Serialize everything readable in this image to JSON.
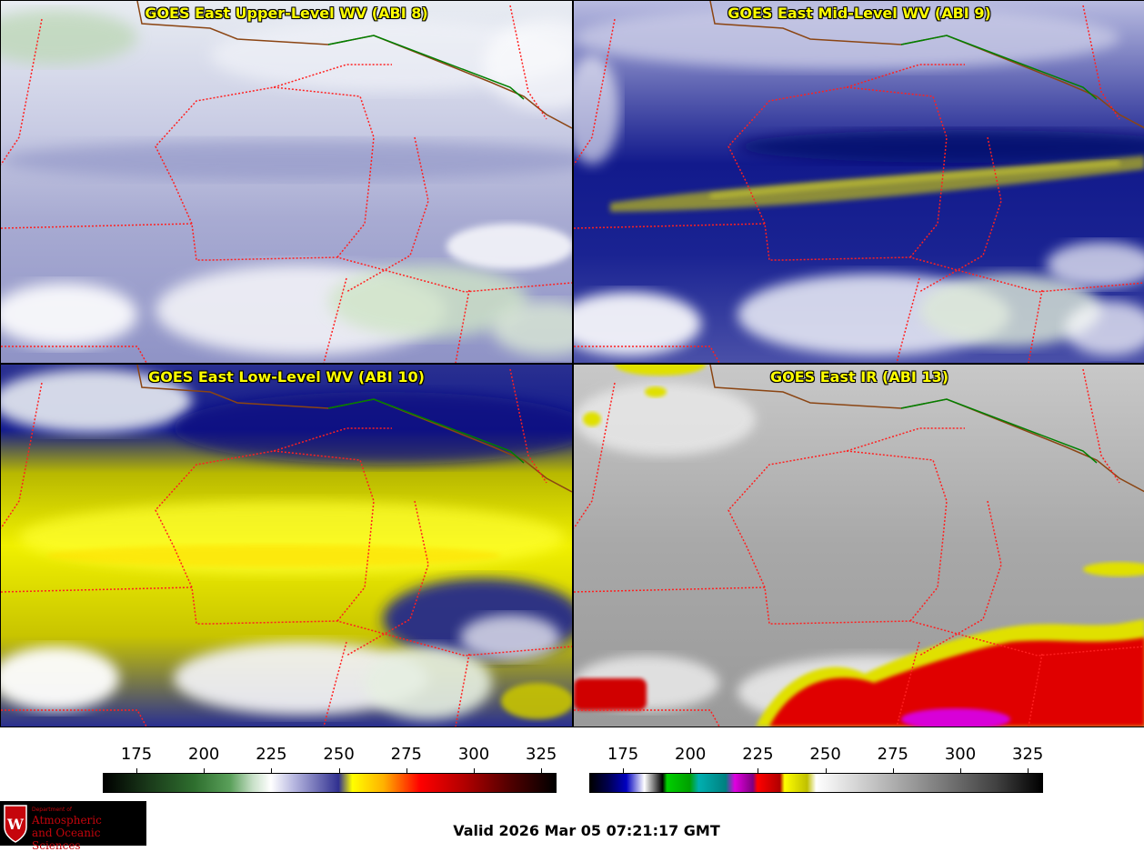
{
  "panels": [
    {
      "id": "upper",
      "title": "GOES East Upper-Level WV (ABI 8)",
      "scheme": "wv_upper"
    },
    {
      "id": "mid",
      "title": "GOES East Mid-Level WV (ABI 9)",
      "scheme": "wv_mid"
    },
    {
      "id": "low",
      "title": "GOES East Low-Level WV (ABI 10)",
      "scheme": "wv_low"
    },
    {
      "id": "ir",
      "title": "GOES East IR (ABI 13)",
      "scheme": "ir"
    }
  ],
  "colorbars": [
    {
      "name": "wv-colorbar",
      "ticks": [
        "175",
        "200",
        "225",
        "250",
        "275",
        "300",
        "325"
      ]
    },
    {
      "name": "ir-colorbar",
      "ticks": [
        "175",
        "200",
        "225",
        "250",
        "275",
        "300",
        "325"
      ]
    }
  ],
  "colors": {
    "state_border": "#ff2020",
    "country_border": "#008000",
    "coast": "#8b4513",
    "title_text": "#ffff00"
  },
  "footer": {
    "valid_time": "Valid 2026 Mar 05 07:21:17 GMT"
  },
  "logo": {
    "dept": "Department of",
    "line1": "Atmospheric",
    "line2": "and Oceanic Sciences"
  }
}
